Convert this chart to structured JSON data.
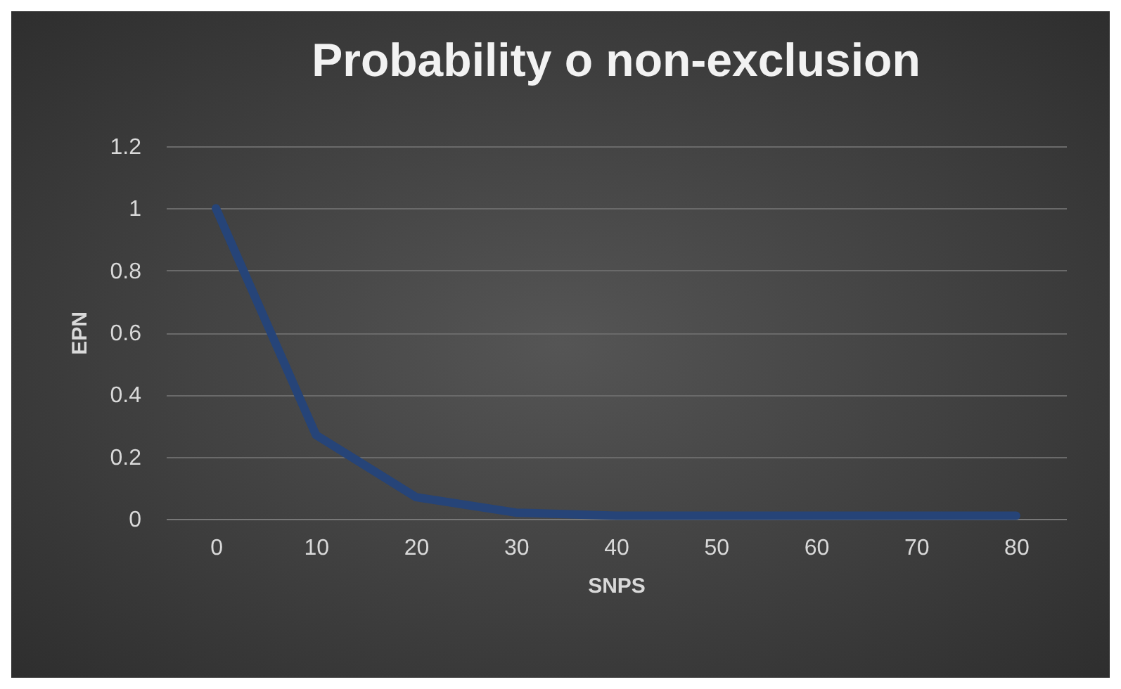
{
  "chart_data": {
    "type": "line",
    "title": "Probability o non-exclusion",
    "xlabel": "SNPS",
    "ylabel": "EPN",
    "categories": [
      "0",
      "10",
      "20",
      "30",
      "40",
      "50",
      "60",
      "70",
      "80"
    ],
    "series": [
      {
        "color": "#264478",
        "values": [
          1,
          0.27,
          0.07,
          0.02,
          0.01,
          0.01,
          0.01,
          0.01,
          0.01
        ]
      }
    ],
    "ylim": [
      0,
      1.2
    ],
    "yticks": [
      0,
      0.2,
      0.4,
      0.6,
      0.8,
      1,
      1.2
    ],
    "grid": "y",
    "legend": false,
    "marker": "none",
    "line_style": "solid"
  }
}
